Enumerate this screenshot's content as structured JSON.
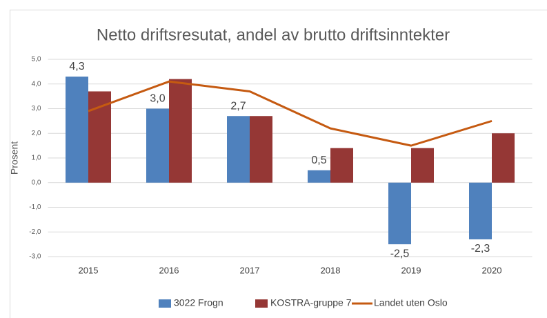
{
  "chart_data": {
    "type": "bar",
    "title": "Netto driftsresutat, andel av brutto driftsinntekter",
    "y_label": "Prosent",
    "categories": [
      "2015",
      "2016",
      "2017",
      "2018",
      "2019",
      "2020"
    ],
    "series": [
      {
        "name": "3022 Frogn",
        "color": "#4f81bd",
        "type": "bar",
        "values": [
          4.3,
          3.0,
          2.7,
          0.5,
          -2.5,
          -2.3
        ],
        "value_labels": [
          "4,3",
          "3,0",
          "2,7",
          "0,5",
          "-2,5",
          "-2,3"
        ]
      },
      {
        "name": "KOSTRA-gruppe 7",
        "color": "#953735",
        "type": "bar",
        "values": [
          3.7,
          4.2,
          2.7,
          1.4,
          1.4,
          2.0
        ]
      },
      {
        "name": "Landet uten Oslo",
        "color": "#c55a11",
        "type": "line",
        "values": [
          2.9,
          4.1,
          3.7,
          2.2,
          1.5,
          2.5
        ]
      }
    ],
    "ylim": [
      -3,
      5
    ],
    "yticks": [
      {
        "value": -3,
        "label": "-3,0"
      },
      {
        "value": -2,
        "label": "-2,0"
      },
      {
        "value": -1,
        "label": "-1,0"
      },
      {
        "value": 0,
        "label": "0,0"
      },
      {
        "value": 1,
        "label": "1,0"
      },
      {
        "value": 2,
        "label": "2,0"
      },
      {
        "value": 3,
        "label": "3,0"
      },
      {
        "value": 4,
        "label": "4,0"
      },
      {
        "value": 5,
        "label": "5,0"
      }
    ],
    "grid": true,
    "legend": "bottom"
  }
}
